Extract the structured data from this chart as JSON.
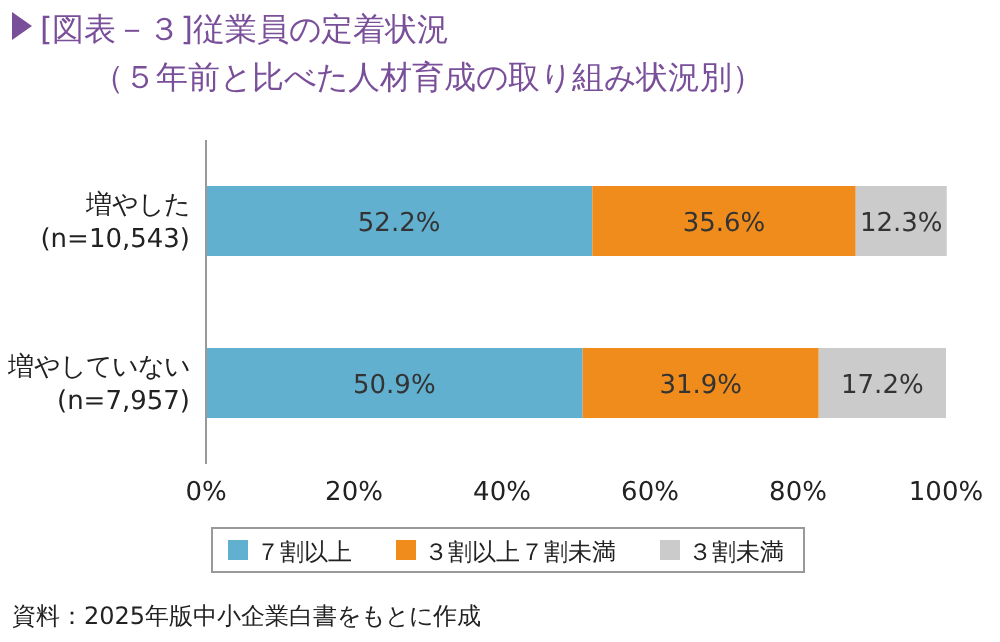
{
  "chart_data": {
    "type": "bar",
    "orientation": "horizontal",
    "stacked": true,
    "title": "[図表－３]従業員の定着状況",
    "subtitle": "（５年前と比べた人材育成の取り組み状況別）",
    "categories": [
      "増やした\n(n=10,543)",
      "増やしていない\n(n=7,957)"
    ],
    "series": [
      {
        "name": "７割以上",
        "color": "#62b0d0",
        "values": [
          52.2,
          50.9
        ],
        "value_labels": [
          "52.2%",
          "50.9%"
        ]
      },
      {
        "name": "３割以上７割未満",
        "color": "#f08c1c",
        "values": [
          35.6,
          31.9
        ],
        "value_labels": [
          "35.6%",
          "31.9%"
        ]
      },
      {
        "name": "３割未満",
        "color": "#cbcbcb",
        "values": [
          12.3,
          17.2
        ],
        "value_labels": [
          "12.3%",
          "17.2%"
        ]
      }
    ],
    "xlim": [
      0,
      100
    ],
    "xticks": [
      {
        "value": 0,
        "label": "0%"
      },
      {
        "value": 20,
        "label": "20%"
      },
      {
        "value": 40,
        "label": "40%"
      },
      {
        "value": 60,
        "label": "60%"
      },
      {
        "value": 80,
        "label": "80%"
      },
      {
        "value": 100,
        "label": "100%"
      }
    ],
    "grid": false,
    "legend": "bottom",
    "annotations": [
      "資料：2025年版中小企業白書をもとに作成"
    ]
  }
}
